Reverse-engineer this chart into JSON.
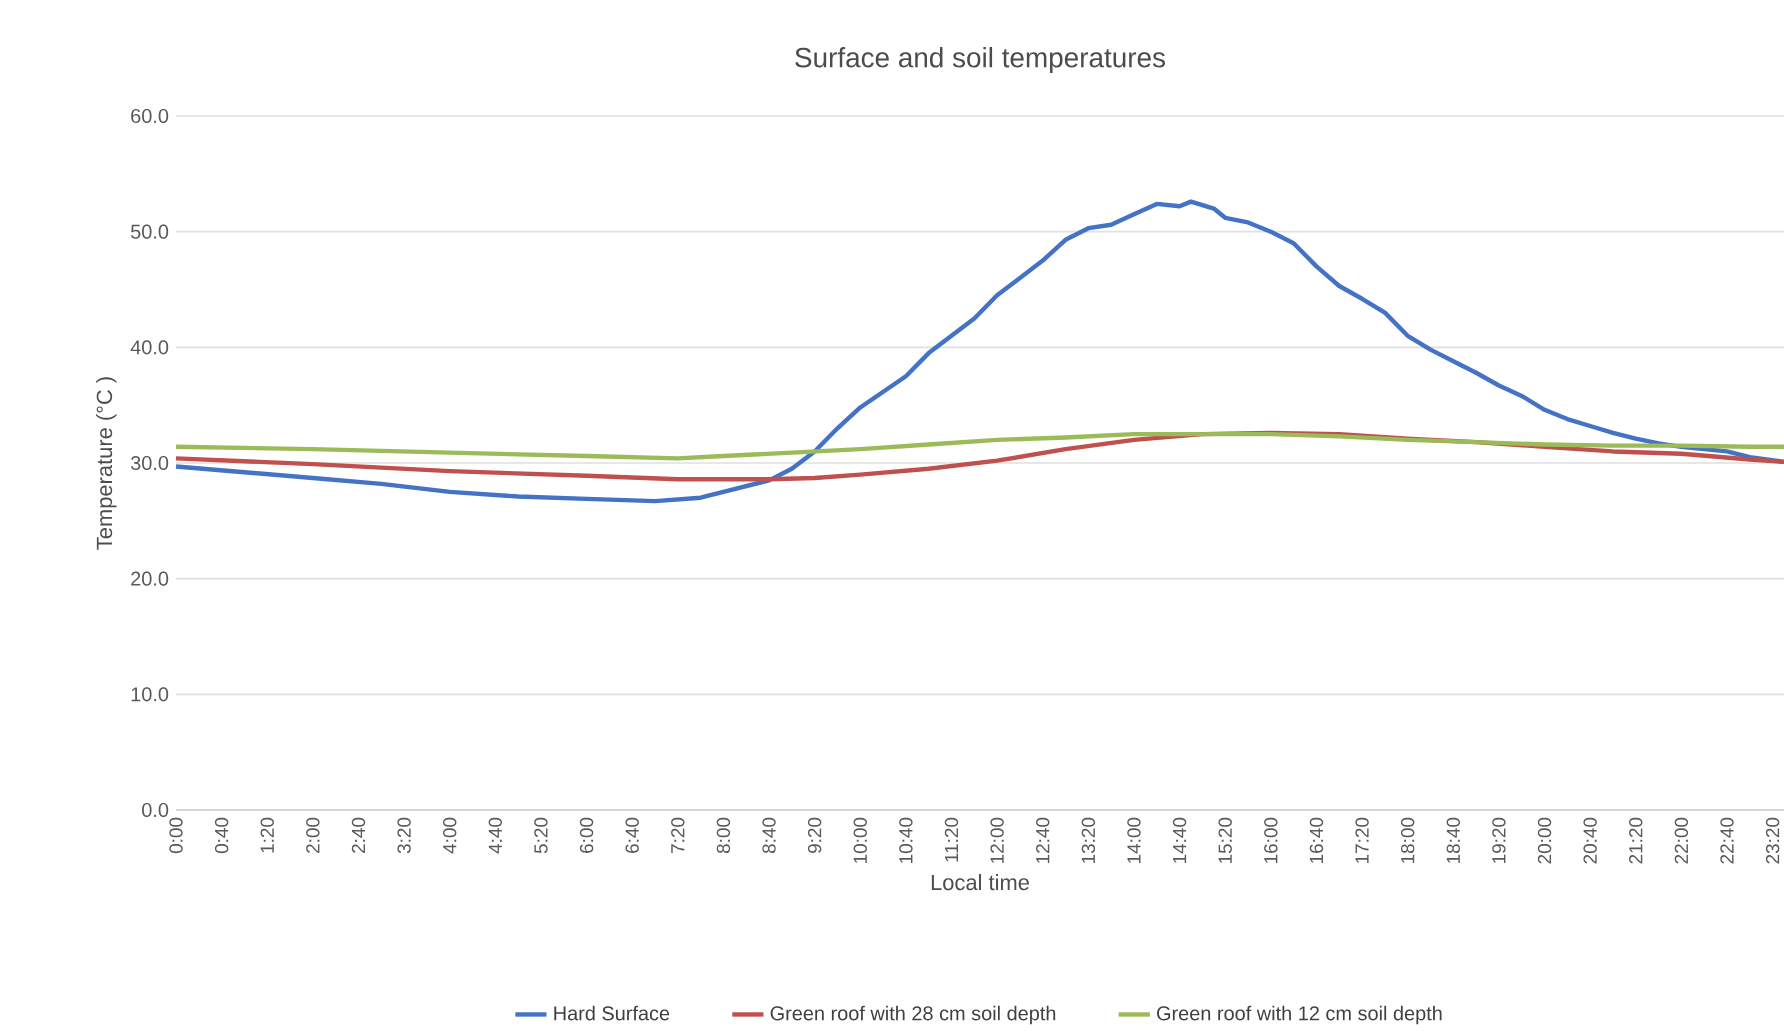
{
  "chart_data": {
    "type": "line",
    "title": "Surface and soil temperatures",
    "xlabel": "Local time",
    "ylabel": "Temperature (°C )",
    "xlim": [
      0,
      23.5
    ],
    "ylim": [
      0,
      60
    ],
    "xticks": [
      {
        "value": 0,
        "label": "0:00"
      },
      {
        "value": 0.6667,
        "label": "0:40"
      },
      {
        "value": 1.3333,
        "label": "1:20"
      },
      {
        "value": 2,
        "label": "2:00"
      },
      {
        "value": 2.6667,
        "label": "2:40"
      },
      {
        "value": 3.3333,
        "label": "3:20"
      },
      {
        "value": 4,
        "label": "4:00"
      },
      {
        "value": 4.6667,
        "label": "4:40"
      },
      {
        "value": 5.3333,
        "label": "5:20"
      },
      {
        "value": 6,
        "label": "6:00"
      },
      {
        "value": 6.6667,
        "label": "6:40"
      },
      {
        "value": 7.3333,
        "label": "7:20"
      },
      {
        "value": 8,
        "label": "8:00"
      },
      {
        "value": 8.6667,
        "label": "8:40"
      },
      {
        "value": 9.3333,
        "label": "9:20"
      },
      {
        "value": 10,
        "label": "10:00"
      },
      {
        "value": 10.6667,
        "label": "10:40"
      },
      {
        "value": 11.3333,
        "label": "11:20"
      },
      {
        "value": 12,
        "label": "12:00"
      },
      {
        "value": 12.6667,
        "label": "12:40"
      },
      {
        "value": 13.3333,
        "label": "13:20"
      },
      {
        "value": 14,
        "label": "14:00"
      },
      {
        "value": 14.6667,
        "label": "14:40"
      },
      {
        "value": 15.3333,
        "label": "15:20"
      },
      {
        "value": 16,
        "label": "16:00"
      },
      {
        "value": 16.6667,
        "label": "16:40"
      },
      {
        "value": 17.3333,
        "label": "17:20"
      },
      {
        "value": 18,
        "label": "18:00"
      },
      {
        "value": 18.6667,
        "label": "18:40"
      },
      {
        "value": 19.3333,
        "label": "19:20"
      },
      {
        "value": 20,
        "label": "20:00"
      },
      {
        "value": 20.6667,
        "label": "20:40"
      },
      {
        "value": 21.3333,
        "label": "21:20"
      },
      {
        "value": 22,
        "label": "22:00"
      },
      {
        "value": 22.6667,
        "label": "22:40"
      },
      {
        "value": 23.3333,
        "label": "23:20"
      }
    ],
    "yticks": [
      {
        "value": 0,
        "label": "0.0"
      },
      {
        "value": 10,
        "label": "10.0"
      },
      {
        "value": 20,
        "label": "20.0"
      },
      {
        "value": 30,
        "label": "30.0"
      },
      {
        "value": 40,
        "label": "40.0"
      },
      {
        "value": 50,
        "label": "50.0"
      },
      {
        "value": 60,
        "label": "60.0"
      }
    ],
    "grid": "y",
    "legend": "bottom",
    "marker": "none",
    "line_style": "solid",
    "series": [
      {
        "name": "Hard Surface",
        "color": "#4472c4",
        "x": [
          0,
          1,
          2,
          3,
          4,
          5,
          6,
          7,
          7.6667,
          8,
          8.6667,
          9,
          9.3333,
          9.6667,
          10,
          10.6667,
          11,
          11.6667,
          12,
          12.6667,
          13,
          13.3333,
          13.6667,
          14,
          14.3333,
          14.6667,
          14.8333,
          15.1667,
          15.3333,
          15.6667,
          16,
          16.3333,
          16.6667,
          17,
          17.3333,
          17.6667,
          18,
          18.3333,
          18.6667,
          19,
          19.3333,
          19.6667,
          20,
          20.3333,
          20.6667,
          21,
          21.3333,
          21.6667,
          22,
          22.6667,
          23,
          23.5
        ],
        "values": [
          29.7,
          29.2,
          28.7,
          28.2,
          27.5,
          27.1,
          26.9,
          26.7,
          27.0,
          27.5,
          28.5,
          29.5,
          31.0,
          33.0,
          34.8,
          37.5,
          39.5,
          42.5,
          44.5,
          47.5,
          49.3,
          50.3,
          50.6,
          51.5,
          52.4,
          52.2,
          52.6,
          52.0,
          51.2,
          50.8,
          50.0,
          49.0,
          47.0,
          45.3,
          44.2,
          43.0,
          41.0,
          39.8,
          38.8,
          37.8,
          36.7,
          35.8,
          34.6,
          33.8,
          33.2,
          32.6,
          32.1,
          31.7,
          31.4,
          31.0,
          30.5,
          30.1
        ]
      },
      {
        "name": "Green roof with 28 cm soil depth",
        "color": "#c0504d",
        "x": [
          0,
          2,
          4,
          6,
          7.3333,
          8.6667,
          9.3333,
          10,
          11,
          12,
          13,
          14,
          15,
          16,
          17,
          18,
          19,
          20,
          21,
          22,
          23,
          23.5
        ],
        "values": [
          30.4,
          29.9,
          29.3,
          28.9,
          28.6,
          28.6,
          28.7,
          29.0,
          29.5,
          30.2,
          31.2,
          32.0,
          32.5,
          32.6,
          32.5,
          32.1,
          31.8,
          31.4,
          31.0,
          30.8,
          30.3,
          30.1
        ]
      },
      {
        "name": "Green roof with 12 cm soil depth",
        "color": "#9bbb59",
        "x": [
          0,
          2,
          4,
          6,
          7.3333,
          8,
          9,
          10,
          11,
          12,
          13,
          14,
          15,
          16,
          17,
          18,
          19,
          20,
          21,
          22,
          23,
          23.5
        ],
        "values": [
          31.4,
          31.2,
          30.9,
          30.6,
          30.4,
          30.6,
          30.9,
          31.2,
          31.6,
          32.0,
          32.2,
          32.5,
          32.5,
          32.5,
          32.3,
          32.0,
          31.8,
          31.6,
          31.5,
          31.5,
          31.4,
          31.4
        ]
      }
    ]
  }
}
